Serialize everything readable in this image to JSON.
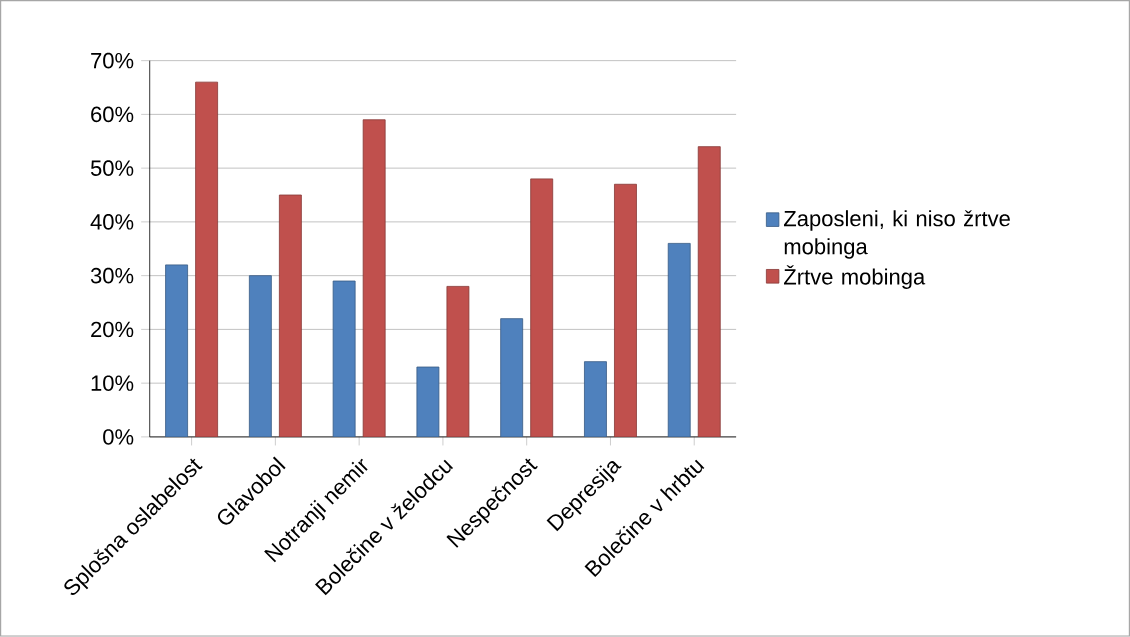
{
  "chart_data": {
    "type": "bar",
    "categories": [
      "Splošna oslabelost",
      "Glavobol",
      "Notranji nemir",
      "Bolečine v želodcu",
      "Nespečnost",
      "Depresija",
      "Bolečine v hrbtu"
    ],
    "series": [
      {
        "name": "Zaposleni, ki niso žrtve mobinga",
        "color": "#4f81bd",
        "values": [
          32,
          30,
          29,
          13,
          22,
          14,
          36
        ]
      },
      {
        "name": "Žrtve mobinga",
        "color": "#c0504d",
        "values": [
          66,
          45,
          59,
          28,
          48,
          47,
          54
        ]
      }
    ],
    "ylim": [
      0,
      70
    ],
    "yticks": [
      {
        "value": 0,
        "label": "0%"
      },
      {
        "value": 10,
        "label": "10%"
      },
      {
        "value": 20,
        "label": "20%"
      },
      {
        "value": 30,
        "label": "30%"
      },
      {
        "value": 40,
        "label": "40%"
      },
      {
        "value": 50,
        "label": "50%"
      },
      {
        "value": 60,
        "label": "60%"
      },
      {
        "value": 70,
        "label": "70%"
      }
    ],
    "grid": "y",
    "legend": "right"
  }
}
